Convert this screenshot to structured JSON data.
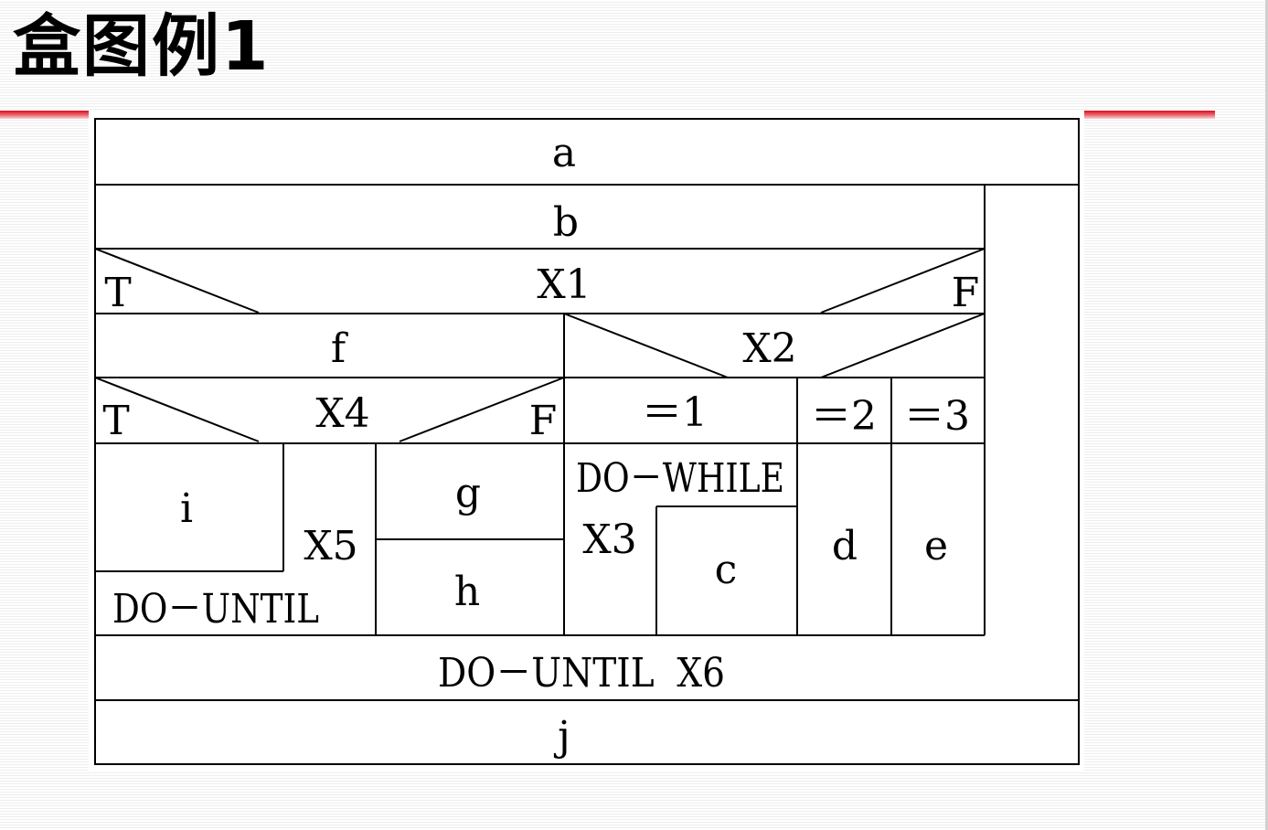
{
  "title": "盒图例1",
  "diagram": {
    "a": "a",
    "b": "b",
    "x1": "X1",
    "x1_true": "T",
    "x1_false": "F",
    "f": "f",
    "x2": "X2",
    "x4": "X4",
    "x4_true": "T",
    "x4_false": "F",
    "case1": "＝1",
    "case2": "＝2",
    "case3": "＝3",
    "i": "i",
    "x5": "X5",
    "do_until_x5": "DO－UNTIL",
    "g": "g",
    "h": "h",
    "do_while": "DO－WHILE",
    "x3": "X3",
    "c": "c",
    "d": "d",
    "e": "e",
    "do_until_x6": "DO－UNTIL  X6",
    "j": "j"
  }
}
